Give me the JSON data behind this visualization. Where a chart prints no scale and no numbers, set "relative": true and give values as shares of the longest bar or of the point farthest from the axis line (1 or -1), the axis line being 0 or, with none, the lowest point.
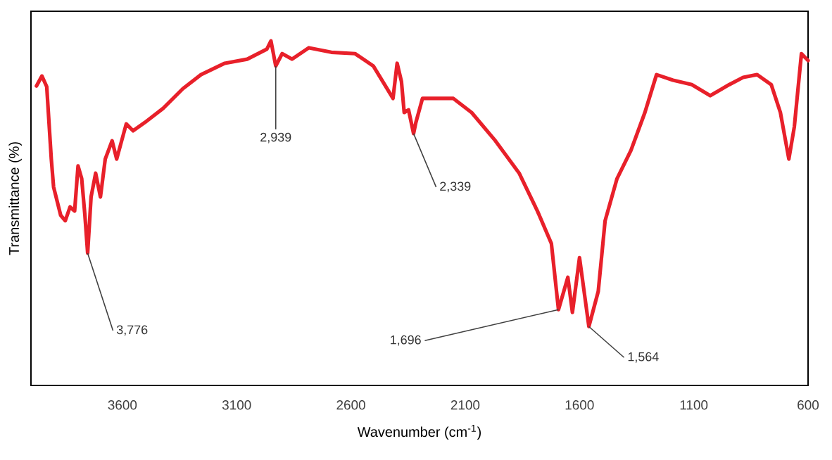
{
  "chart_data": {
    "type": "line",
    "relative": true,
    "xlabel": "Wavenumber (cm$^{-1}$)",
    "ylabel": "Transmittance (%)",
    "x": [
      3976,
      3952,
      3931,
      3911,
      3901,
      3870,
      3850,
      3829,
      3809,
      3794,
      3778,
      3764,
      3752,
      3737,
      3717,
      3696,
      3675,
      3645,
      3625,
      3583,
      3553,
      3502,
      3422,
      3336,
      3256,
      3152,
      3054,
      2968,
      2950,
      2929,
      2901,
      2858,
      2784,
      2686,
      2582,
      2502,
      2416,
      2398,
      2379,
      2367,
      2348,
      2326,
      2316,
      2287,
      2152,
      2072,
      1968,
      1864,
      1784,
      1723,
      1692,
      1651,
      1631,
      1600,
      1559,
      1518,
      1488,
      1436,
      1375,
      1314,
      1263,
      1191,
      1109,
      1028,
      945,
      884,
      823,
      761,
      721,
      684,
      660,
      629,
      600
    ],
    "series": [
      {
        "color": "#e8202a",
        "values": [
          0.869,
          0.898,
          0.867,
          0.657,
          0.576,
          0.494,
          0.478,
          0.518,
          0.506,
          0.637,
          0.6,
          0.494,
          0.384,
          0.547,
          0.616,
          0.547,
          0.657,
          0.71,
          0.657,
          0.759,
          0.739,
          0.763,
          0.804,
          0.861,
          0.902,
          0.935,
          0.947,
          0.976,
          1.0,
          0.927,
          0.963,
          0.947,
          0.98,
          0.967,
          0.963,
          0.927,
          0.833,
          0.935,
          0.882,
          0.792,
          0.8,
          0.731,
          0.763,
          0.833,
          0.833,
          0.792,
          0.71,
          0.616,
          0.506,
          0.412,
          0.22,
          0.314,
          0.212,
          0.371,
          0.171,
          0.273,
          0.478,
          0.6,
          0.682,
          0.792,
          0.902,
          0.886,
          0.873,
          0.841,
          0.873,
          0.894,
          0.902,
          0.873,
          0.792,
          0.657,
          0.751,
          0.963,
          0.943
        ]
      }
    ],
    "xlim": [
      4000,
      600
    ],
    "xticks": [
      3600,
      3100,
      2600,
      2100,
      1600,
      1100,
      600
    ],
    "annotations": [
      {
        "text": "3,776",
        "x": 3752,
        "y": 0.384
      },
      {
        "text": "2,939",
        "x": 2929,
        "y": 0.927
      },
      {
        "text": "2,339",
        "x": 2326,
        "y": 0.731
      },
      {
        "text": "1,696",
        "x": 1692,
        "y": 0.22
      },
      {
        "text": "1,564",
        "x": 1559,
        "y": 0.171
      }
    ],
    "line_style": "solid",
    "marker": "none",
    "grid": false
  }
}
